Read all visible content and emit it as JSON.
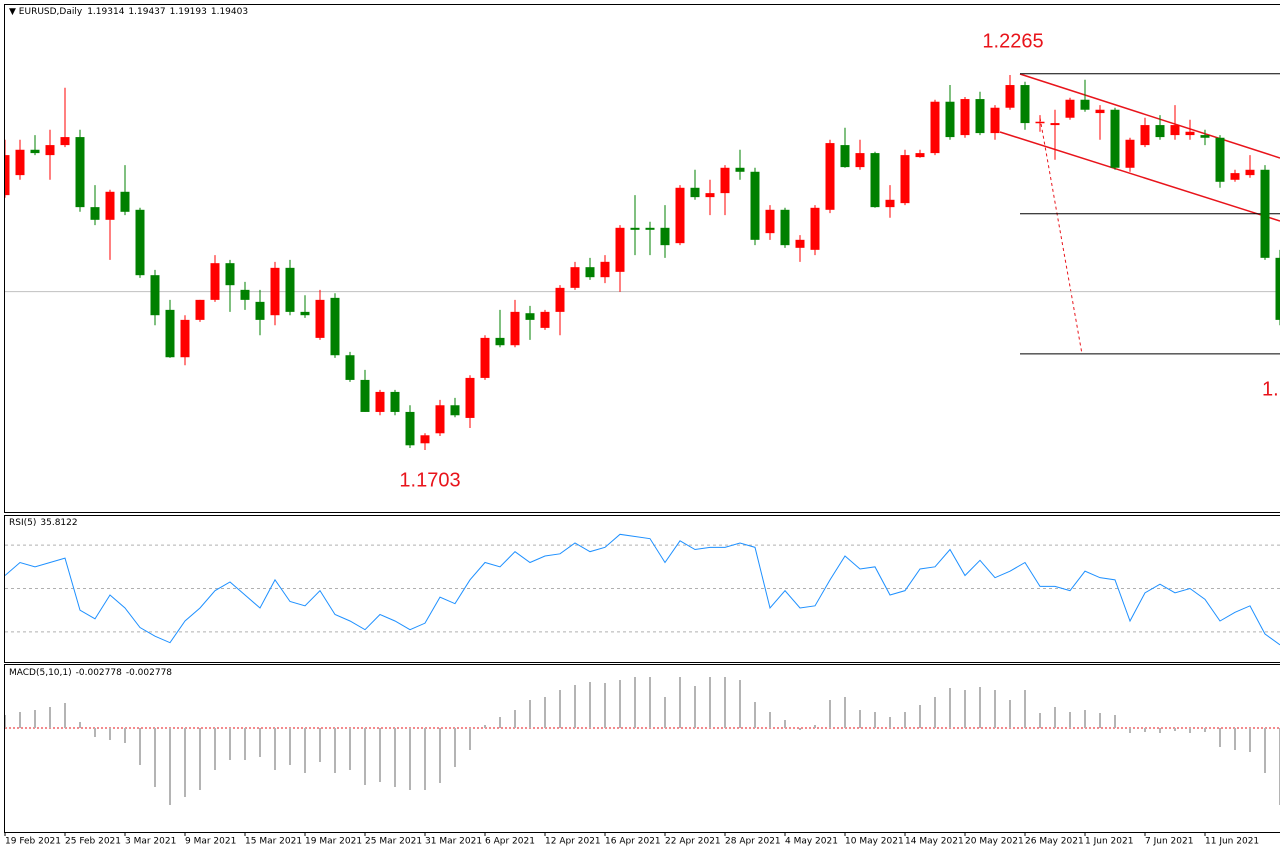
{
  "chart_data": [
    {
      "type": "candlestick",
      "title": "EURUSD,Daily",
      "header_values": [
        1.19314,
        1.19437,
        1.19193,
        1.19403
      ],
      "categories": [
        "19 Feb 2021",
        null,
        null,
        null,
        "25 Feb 2021",
        null,
        null,
        null,
        "3 Mar 2021",
        null,
        null,
        null,
        "9 Mar 2021",
        null,
        null,
        null,
        "15 Mar 2021",
        null,
        null,
        null,
        "19 Mar 2021",
        null,
        null,
        null,
        "25 Mar 2021",
        null,
        null,
        null,
        "31 Mar 2021",
        null,
        null,
        null,
        "6 Apr 2021",
        null,
        null,
        null,
        "12 Apr 2021",
        null,
        null,
        null,
        "16 Apr 2021",
        null,
        null,
        null,
        "22 Apr 2021",
        null,
        null,
        null,
        "28 Apr 2021",
        null,
        null,
        null,
        "4 May 2021",
        null,
        null,
        null,
        "10 May 2021",
        null,
        null,
        null,
        "14 May 2021",
        null,
        null,
        null,
        "20 May 2021",
        null,
        null,
        null,
        "26 May 2021",
        null,
        null,
        null,
        "1 Jun 2021",
        null,
        null,
        null,
        "7 Jun 2021",
        null,
        null,
        null,
        "11 Jun 2021",
        null,
        null,
        null,
        null,
        null
      ],
      "open": [
        1.2085,
        1.2115,
        1.2153,
        1.2145,
        1.216,
        1.2172,
        1.2067,
        1.2048,
        1.209,
        1.2063,
        1.1965,
        1.1913,
        1.1842,
        1.1898,
        1.1928,
        1.1983,
        1.1943,
        1.1925,
        1.1905,
        1.1976,
        1.191,
        1.1871,
        1.1931,
        1.1845,
        1.1808,
        1.176,
        1.179,
        1.176,
        1.1713,
        1.1728,
        1.177,
        1.1751,
        1.1811,
        1.1871,
        1.186,
        1.1908,
        1.1886,
        1.191,
        1.1946,
        1.1977,
        1.1962,
        1.197,
        1.2036,
        1.2036,
        1.2036,
        1.2013,
        1.2096,
        1.2082,
        1.2088,
        1.2126,
        1.212,
        1.2028,
        1.2063,
        1.2006,
        1.2003,
        1.2063,
        1.216,
        1.2127,
        1.2148,
        1.2067,
        1.2073,
        1.2142,
        1.2148,
        1.2225,
        1.2175,
        1.2229,
        1.2178,
        1.2216,
        1.225,
        1.2193,
        1.219,
        1.2201,
        1.2228,
        1.2208,
        1.2213,
        1.2126,
        1.216,
        1.219,
        1.2175,
        1.2175,
        1.2175,
        1.2171,
        1.2108,
        1.2115,
        1.2123,
        1.1991
      ],
      "high": [
        1.2168,
        1.2168,
        1.2175,
        1.2183,
        1.2246,
        1.2183,
        1.21,
        1.2093,
        1.213,
        1.2066,
        1.1973,
        1.1928,
        1.1905,
        1.1928,
        1.1995,
        1.1988,
        1.1955,
        1.1943,
        1.1985,
        1.1988,
        1.1935,
        1.1943,
        1.1938,
        1.185,
        1.1823,
        1.1793,
        1.1793,
        1.177,
        1.1728,
        1.1778,
        1.1781,
        1.1815,
        1.1875,
        1.1913,
        1.1928,
        1.1919,
        1.1913,
        1.195,
        1.1985,
        1.1991,
        1.1995,
        1.204,
        1.2085,
        1.2045,
        1.207,
        1.21,
        1.2123,
        1.2108,
        1.213,
        1.2153,
        1.2126,
        1.207,
        1.2066,
        1.2025,
        1.207,
        1.2168,
        1.2186,
        1.2168,
        1.215,
        1.21,
        1.2153,
        1.2153,
        1.2228,
        1.225,
        1.2232,
        1.224,
        1.222,
        1.2265,
        1.2255,
        1.2205,
        1.2213,
        1.2231,
        1.2258,
        1.222,
        1.2216,
        1.2171,
        1.2201,
        1.2205,
        1.222,
        1.2198,
        1.2183,
        1.2175,
        1.2123,
        1.2145,
        1.213,
        1.2003
      ],
      "low": [
        1.2081,
        1.2108,
        1.2145,
        1.2108,
        1.2157,
        1.206,
        1.204,
        1.1988,
        1.2055,
        1.1961,
        1.189,
        1.1841,
        1.183,
        1.1895,
        1.1925,
        1.191,
        1.1913,
        1.1875,
        1.189,
        1.1905,
        1.1901,
        1.1868,
        1.1841,
        1.1805,
        1.176,
        1.1755,
        1.1755,
        1.1706,
        1.1703,
        1.1724,
        1.1752,
        1.1736,
        1.1808,
        1.1857,
        1.1857,
        1.1868,
        1.1883,
        1.1875,
        1.1943,
        1.1958,
        1.1953,
        1.194,
        1.1995,
        1.1995,
        1.1991,
        1.201,
        1.2078,
        1.2055,
        1.2055,
        1.2108,
        1.201,
        1.2018,
        1.2006,
        1.1985,
        1.1995,
        1.2058,
        1.2126,
        1.2123,
        1.2066,
        1.2051,
        1.207,
        1.2141,
        1.2145,
        1.2168,
        1.2171,
        1.2175,
        1.2168,
        1.2213,
        1.2183,
        1.218,
        1.2138,
        1.2198,
        1.221,
        1.2168,
        1.2123,
        1.212,
        1.2157,
        1.2168,
        1.2168,
        1.2168,
        1.216,
        1.2096,
        1.2105,
        1.2111,
        1.1988,
        1.189
      ],
      "close": [
        1.2145,
        1.2153,
        1.2148,
        1.216,
        1.2172,
        1.2067,
        1.2048,
        1.209,
        1.206,
        1.1965,
        1.1905,
        1.1842,
        1.1898,
        1.1928,
        1.1983,
        1.195,
        1.1928,
        1.1898,
        1.1976,
        1.191,
        1.1905,
        1.1928,
        1.1845,
        1.1808,
        1.176,
        1.179,
        1.176,
        1.171,
        1.1725,
        1.177,
        1.1755,
        1.1811,
        1.1871,
        1.186,
        1.191,
        1.1898,
        1.191,
        1.1946,
        1.1977,
        1.1962,
        1.1985,
        1.2036,
        1.2033,
        1.2033,
        1.201,
        1.2096,
        1.2082,
        1.2088,
        1.2126,
        1.212,
        1.2018,
        1.2063,
        1.201,
        1.2018,
        1.2066,
        1.2163,
        1.2127,
        1.2148,
        1.2067,
        1.2078,
        1.2145,
        1.2148,
        1.2225,
        1.2172,
        1.2229,
        1.2178,
        1.2216,
        1.225,
        1.2193,
        1.2195,
        1.2193,
        1.2228,
        1.2213,
        1.2213,
        1.2126,
        1.2168,
        1.219,
        1.2172,
        1.219,
        1.218,
        1.2171,
        1.2105,
        1.2118,
        1.2123,
        1.1991,
        1.1898
      ],
      "up_color": "#ff0000",
      "down_color": "#008000",
      "ylim": [
        1.161,
        1.237
      ],
      "levels": [
        1.2267,
        1.2057,
        1.1847
      ],
      "annotations": [
        "1.2265",
        "1.1703",
        "1."
      ]
    },
    {
      "type": "line",
      "title": "RSI(5)",
      "last_value": 35.8122,
      "color": "#1e90ff",
      "values": [
        56,
        62,
        60,
        62,
        64,
        40,
        36,
        47,
        41,
        32,
        28,
        25,
        35,
        41,
        49,
        53,
        47,
        41,
        54,
        44,
        42,
        49,
        38,
        35,
        31,
        38,
        35,
        31,
        34,
        46,
        43,
        54,
        62,
        60,
        67,
        62,
        65,
        66,
        71,
        67,
        69,
        75,
        74,
        73,
        62,
        72,
        68,
        69,
        69,
        71,
        69,
        41,
        49,
        41,
        42,
        54,
        65,
        59,
        60,
        47,
        49,
        59,
        60,
        68,
        56,
        63,
        55,
        58,
        62,
        51,
        51,
        49,
        58,
        55,
        54,
        35,
        48,
        52,
        48,
        50,
        45,
        35,
        39,
        42,
        29,
        24
      ],
      "ylim": [
        17,
        83
      ],
      "levels": [
        30,
        50,
        70
      ]
    },
    {
      "type": "bar",
      "title": "MACD(5,10,1)",
      "header_values": [
        -0.002778,
        -0.002778
      ],
      "color": "#b4b4b4",
      "values": [
        0.00052,
        0.00064,
        0.00072,
        0.00084,
        0.001,
        0.00024,
        -0.00036,
        -0.00048,
        -0.0006,
        -0.00148,
        -0.00236,
        -0.00308,
        -0.00276,
        -0.00248,
        -0.00168,
        -0.00128,
        -0.00128,
        -0.00116,
        -0.00168,
        -0.00148,
        -0.0018,
        -0.00136,
        -0.0018,
        -0.00168,
        -0.00228,
        -0.00216,
        -0.00236,
        -0.00248,
        -0.00248,
        -0.0022,
        -0.00156,
        -0.00088,
        0.00012,
        0.00044,
        0.00072,
        0.00112,
        0.00124,
        0.00152,
        0.00172,
        0.00184,
        0.0018,
        0.00192,
        0.00204,
        0.00204,
        0.00124,
        0.00204,
        0.00168,
        0.00204,
        0.00204,
        0.00192,
        0.00104,
        0.00064,
        0.00032,
        -8e-05,
        0.00012,
        0.00112,
        0.00124,
        0.00072,
        0.00064,
        0.00044,
        0.00064,
        0.00092,
        0.00124,
        0.0016,
        0.00152,
        0.00164,
        0.00152,
        0.00112,
        0.00152,
        0.0006,
        0.00084,
        0.00064,
        0.00072,
        0.0006,
        0.00052,
        -0.0002,
        -0.00016,
        -0.0002,
        -0.00012,
        -0.0002,
        -0.00016,
        -0.00076,
        -0.00088,
        -0.00096,
        -0.0018,
        -0.00308
      ],
      "ylim": [
        -0.00416,
        0.00252
      ],
      "levels": [
        0
      ]
    }
  ]
}
